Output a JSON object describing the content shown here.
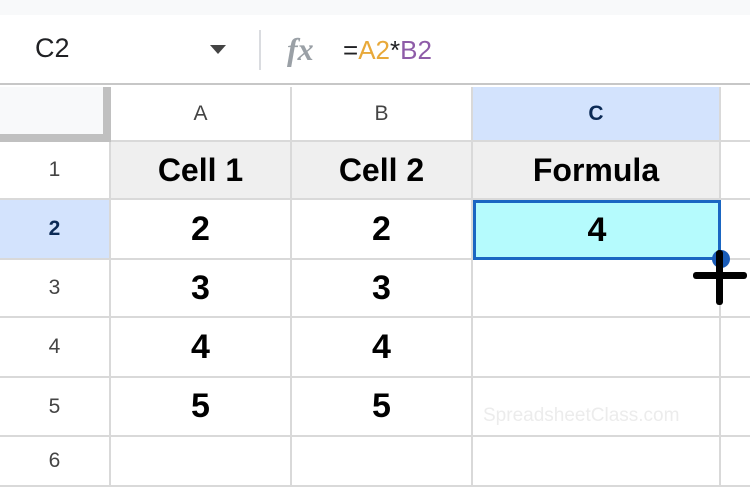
{
  "name_box": "C2",
  "fx_label": "fx",
  "formula": {
    "eq": "=",
    "ref1": "A2",
    "op": "*",
    "ref2": "B2"
  },
  "columns": [
    "A",
    "B",
    "C"
  ],
  "rows": [
    "1",
    "2",
    "3",
    "4",
    "5",
    "6"
  ],
  "cells": [
    [
      "Cell 1",
      "Cell 2",
      "Formula"
    ],
    [
      "2",
      "2",
      "4"
    ],
    [
      "3",
      "3",
      ""
    ],
    [
      "4",
      "4",
      ""
    ],
    [
      "5",
      "5",
      ""
    ],
    [
      "",
      "",
      ""
    ]
  ],
  "active_cell": "C2",
  "watermark": "SpreadsheetClass.com",
  "colors": {
    "active_fill": "#b5fbfd",
    "selection_border": "#1a66c2",
    "header_highlight": "#d3e3fd",
    "ref1": "#e8a93a",
    "ref2": "#8e5ca8"
  }
}
